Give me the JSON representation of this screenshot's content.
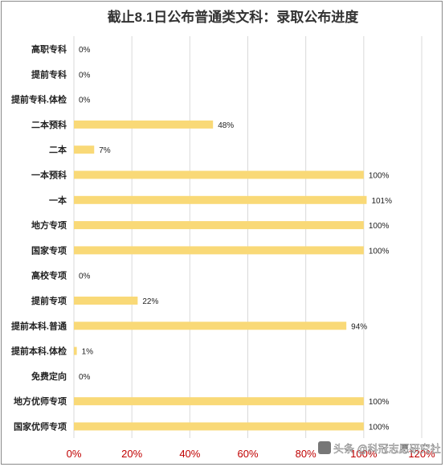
{
  "chart_data": {
    "type": "bar",
    "orientation": "horizontal",
    "title": "截止8.1日公布普通类文科：录取公布进度",
    "categories": [
      "高职专科",
      "提前专科",
      "提前专科.体检",
      "二本预科",
      "二本",
      "一本预科",
      "一本",
      "地方专项",
      "国家专项",
      "高校专项",
      "提前专项",
      "提前本科.普通",
      "提前本科.体检",
      "免费定向",
      "地方优师专项",
      "国家优师专项"
    ],
    "values": [
      0,
      0,
      0,
      48,
      7,
      100,
      101,
      100,
      100,
      0,
      22,
      94,
      1,
      0,
      100,
      100
    ],
    "value_labels": [
      "0%",
      "0%",
      "0%",
      "48%",
      "7%",
      "100%",
      "101%",
      "100%",
      "100%",
      "0%",
      "22%",
      "94%",
      "1%",
      "0%",
      "100%",
      "100%"
    ],
    "xlim": [
      0,
      120
    ],
    "xticks": [
      0,
      20,
      40,
      60,
      80,
      100,
      120
    ],
    "xtick_labels": [
      "0%",
      "20%",
      "40%",
      "60%",
      "80%",
      "100%",
      "120%"
    ],
    "grid": true,
    "bar_color": "#f9d977",
    "tick_label_color": "#c00000"
  },
  "watermark": "头条 @科冠志愿研究社"
}
